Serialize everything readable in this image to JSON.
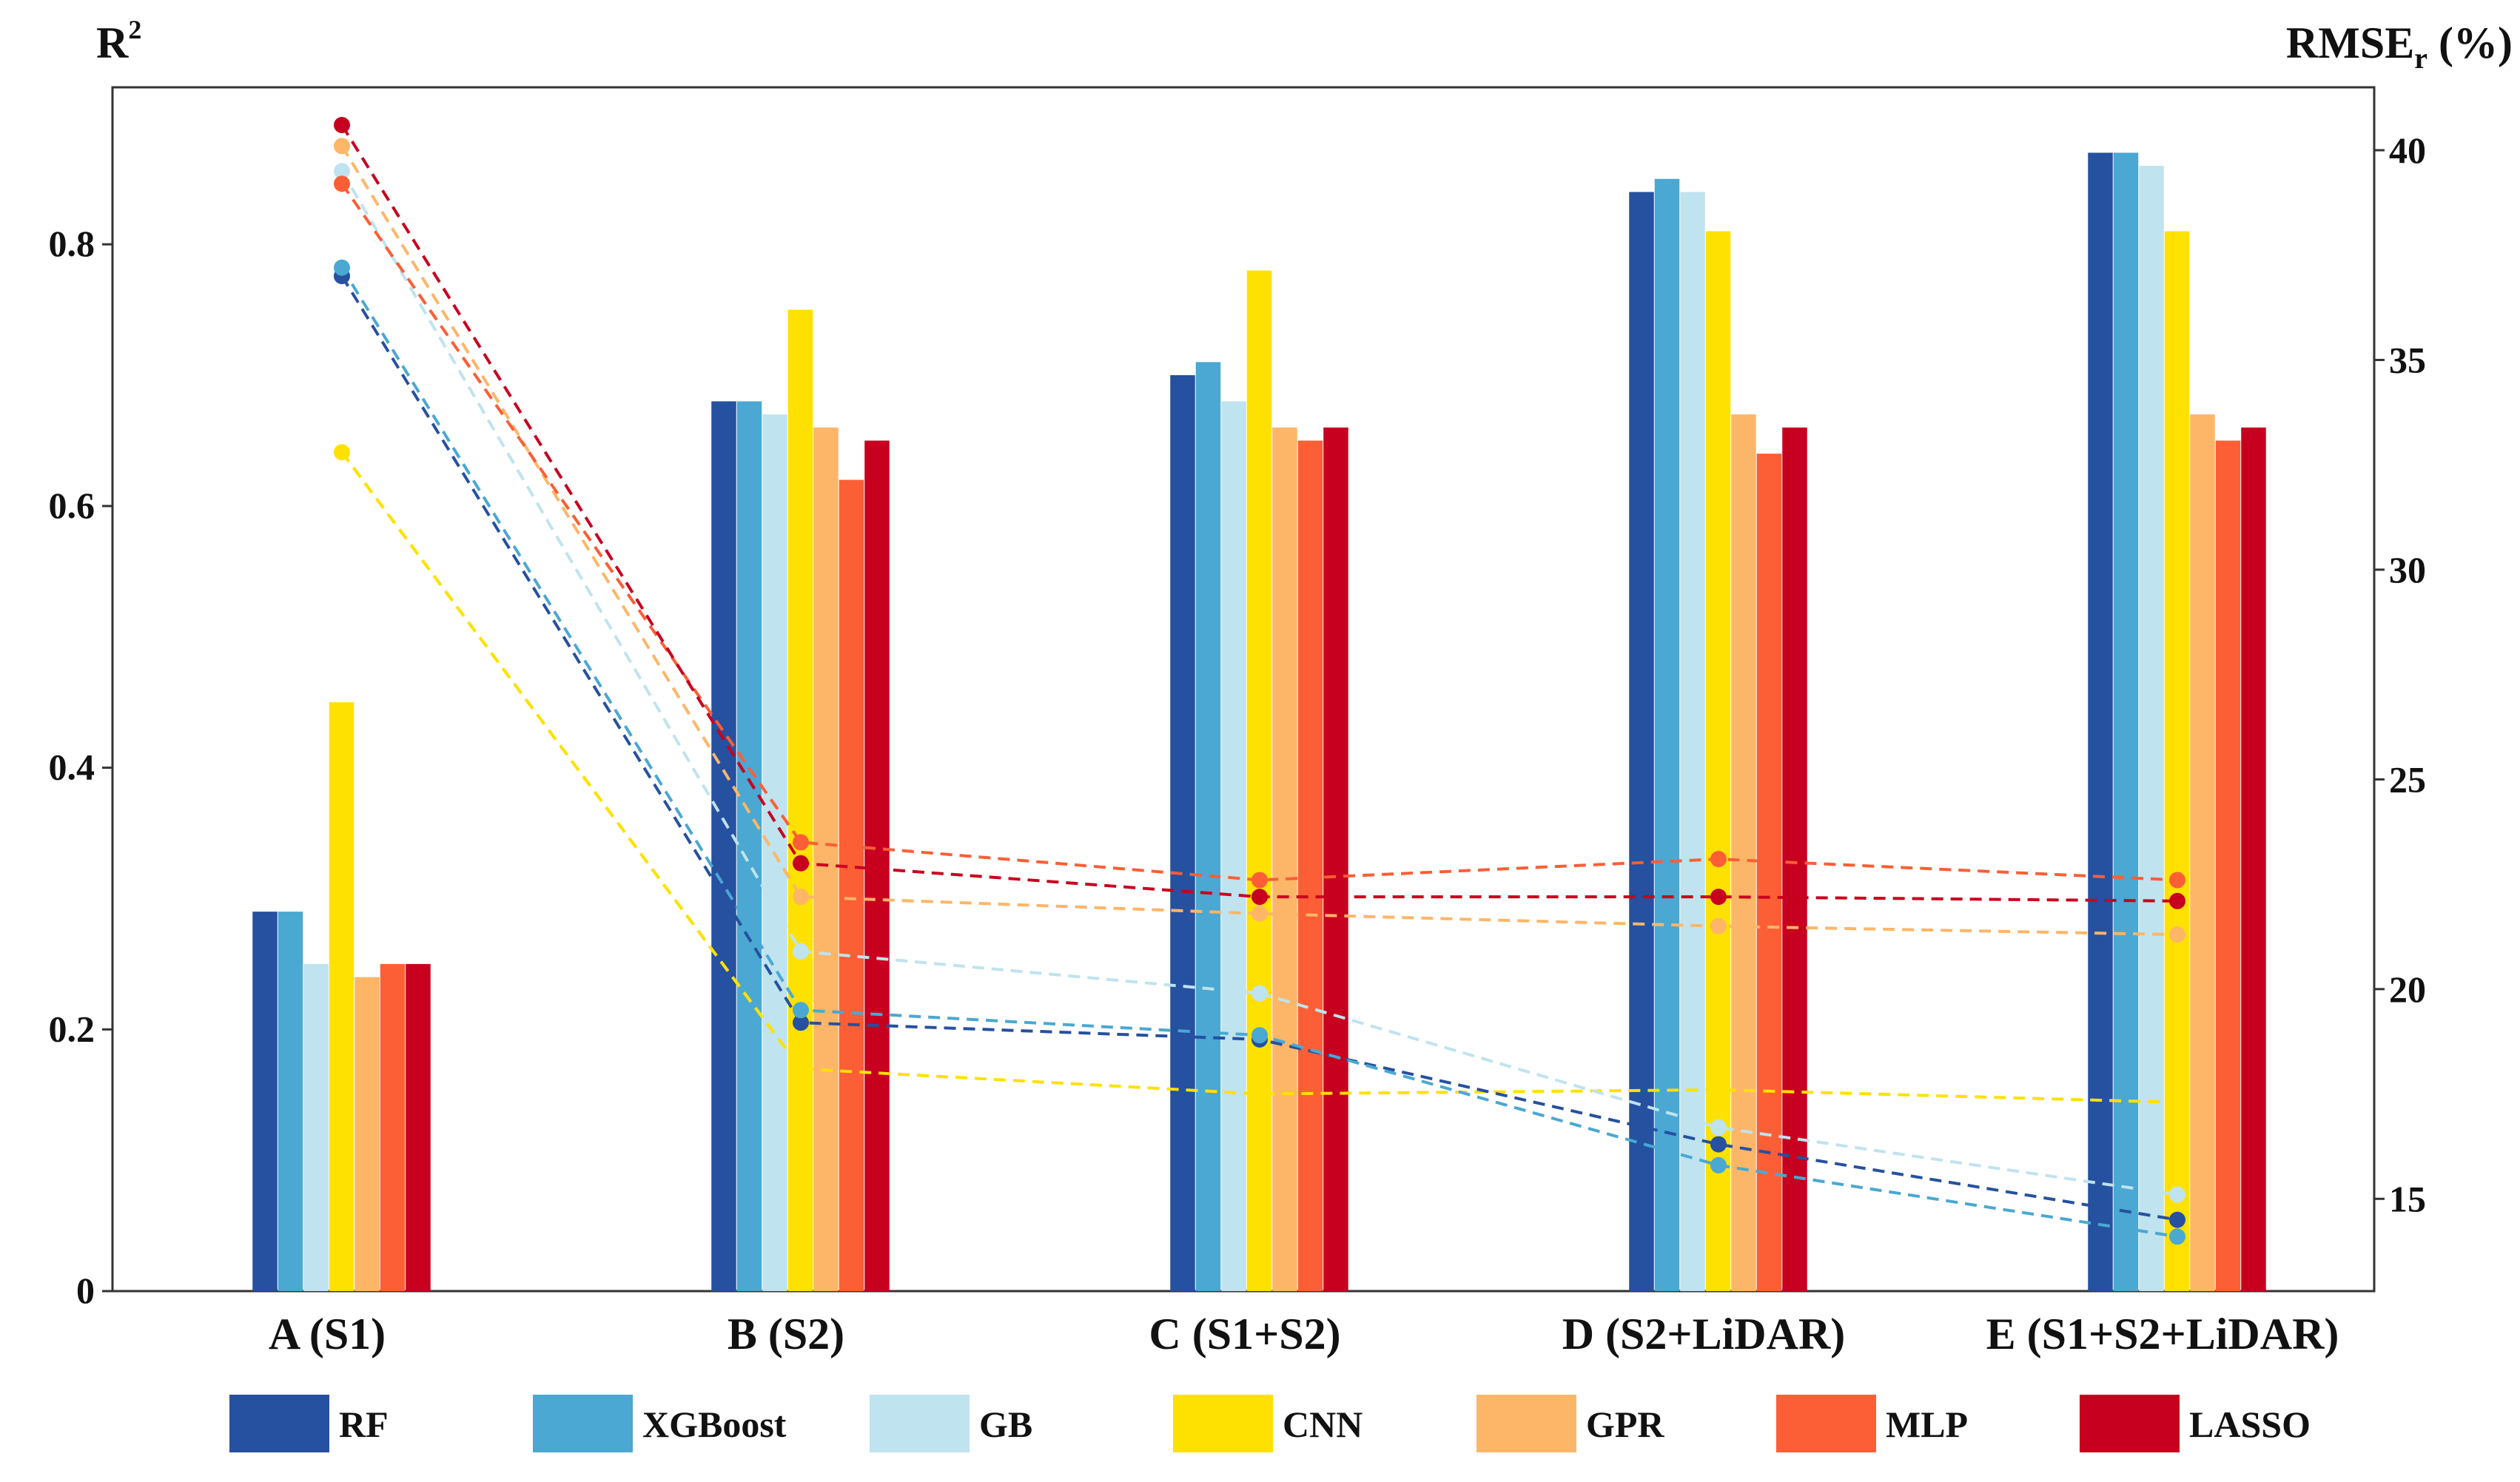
{
  "chart_data": {
    "type": "bar",
    "categories": [
      "A (S1)",
      "B (S2)",
      "C (S1+S2)",
      "D (S2+LiDAR)",
      "E (S1+S2+LiDAR)"
    ],
    "left_axis": {
      "label_main": "R",
      "label_sup": "2",
      "ylim": [
        0,
        0.92
      ],
      "ticks": [
        0,
        0.2,
        0.4,
        0.6,
        0.8
      ],
      "tick_labels": [
        "0",
        "0.2",
        "0.4",
        "0.6",
        "0.8"
      ]
    },
    "right_axis": {
      "label_main": "RMSE",
      "label_sub": "r",
      "label_tail": " (%)",
      "ylim": [
        12.8,
        41.5
      ],
      "ticks": [
        15,
        20,
        25,
        30,
        35,
        40
      ],
      "tick_labels": [
        "15",
        "20",
        "25",
        "30",
        "35",
        "40"
      ]
    },
    "bar_series": [
      {
        "name": "RF",
        "color": "#2650A0",
        "values": [
          0.29,
          0.68,
          0.7,
          0.84,
          0.87
        ]
      },
      {
        "name": "XGBoost",
        "color": "#4AA8D2",
        "values": [
          0.29,
          0.68,
          0.71,
          0.85,
          0.87
        ]
      },
      {
        "name": "GB",
        "color": "#BFE3EF",
        "values": [
          0.25,
          0.67,
          0.68,
          0.84,
          0.86
        ]
      },
      {
        "name": "CNN",
        "color": "#FFE100",
        "values": [
          0.45,
          0.75,
          0.78,
          0.81,
          0.81
        ]
      },
      {
        "name": "GPR",
        "color": "#FDB668",
        "values": [
          0.24,
          0.66,
          0.66,
          0.67,
          0.67
        ]
      },
      {
        "name": "MLP",
        "color": "#FC5E36",
        "values": [
          0.25,
          0.62,
          0.65,
          0.64,
          0.65
        ]
      },
      {
        "name": "LASSO",
        "color": "#C8001F",
        "values": [
          0.25,
          0.65,
          0.66,
          0.66,
          0.66
        ]
      }
    ],
    "line_series": [
      {
        "name": "RF",
        "color": "#2650A0",
        "values": [
          37.0,
          19.2,
          18.8,
          16.3,
          14.5
        ]
      },
      {
        "name": "XGBoost",
        "color": "#4AA8D2",
        "values": [
          37.2,
          19.5,
          18.9,
          15.8,
          14.1
        ]
      },
      {
        "name": "GB",
        "color": "#BFE3EF",
        "values": [
          39.5,
          20.9,
          19.9,
          16.7,
          15.1
        ]
      },
      {
        "name": "CNN",
        "color": "#FFE100",
        "values": [
          32.8,
          18.1,
          null,
          null,
          null
        ]
      },
      {
        "name": "GPR",
        "color": "#FDB668",
        "values": [
          40.1,
          22.2,
          21.8,
          21.5,
          21.3
        ]
      },
      {
        "name": "MLP",
        "color": "#FC5E36",
        "values": [
          39.2,
          23.5,
          22.6,
          23.1,
          22.6
        ]
      },
      {
        "name": "LASSO",
        "color": "#C8001F",
        "values": [
          40.6,
          23.0,
          22.2,
          22.2,
          22.1
        ]
      }
    ],
    "cnn_trend_line": {
      "name": "CNN",
      "color": "#FFE100",
      "values": [
        32.8,
        18.1,
        17.5,
        17.6,
        17.3
      ]
    },
    "legend": [
      "RF",
      "XGBoost",
      "GB",
      "CNN",
      "GPR",
      "MLP",
      "LASSO"
    ]
  }
}
